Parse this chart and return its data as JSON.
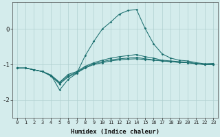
{
  "xlabel": "Humidex (Indice chaleur)",
  "ylabel": "",
  "background_color": "#d4ecec",
  "line_color": "#1a6e6e",
  "grid_color": "#b0d0d0",
  "xlim": [
    -0.5,
    23.5
  ],
  "ylim": [
    -2.5,
    0.75
  ],
  "yticks": [
    0,
    -1,
    -2
  ],
  "xticks": [
    0,
    1,
    2,
    3,
    4,
    5,
    6,
    7,
    8,
    9,
    10,
    11,
    12,
    13,
    14,
    15,
    16,
    17,
    18,
    19,
    20,
    21,
    22,
    23
  ],
  "series": [
    {
      "x": [
        0,
        1,
        2,
        3,
        4,
        5,
        6,
        7,
        8,
        9,
        10,
        11,
        12,
        13,
        14,
        15,
        16,
        17,
        18,
        19,
        20,
        21,
        22,
        23
      ],
      "y": [
        -1.1,
        -1.1,
        -1.15,
        -1.2,
        -1.3,
        -1.72,
        -1.42,
        -1.25,
        -0.75,
        -0.35,
        0.0,
        0.2,
        0.42,
        0.52,
        0.55,
        0.02,
        -0.42,
        -0.7,
        -0.82,
        -0.88,
        -0.9,
        -0.95,
        -0.98,
        -0.97
      ]
    },
    {
      "x": [
        0,
        1,
        2,
        3,
        4,
        5,
        6,
        7,
        8,
        9,
        10,
        11,
        12,
        13,
        14,
        15,
        16,
        17,
        18,
        19,
        20,
        21,
        22,
        23
      ],
      "y": [
        -1.1,
        -1.1,
        -1.15,
        -1.2,
        -1.3,
        -1.5,
        -1.28,
        -1.2,
        -1.05,
        -0.95,
        -0.88,
        -0.82,
        -0.78,
        -0.75,
        -0.72,
        -0.78,
        -0.82,
        -0.88,
        -0.9,
        -0.92,
        -0.94,
        -0.97,
        -1.0,
        -1.0
      ]
    },
    {
      "x": [
        0,
        1,
        2,
        3,
        4,
        5,
        6,
        7,
        8,
        9,
        10,
        11,
        12,
        13,
        14,
        15,
        16,
        17,
        18,
        19,
        20,
        21,
        22,
        23
      ],
      "y": [
        -1.1,
        -1.1,
        -1.15,
        -1.2,
        -1.32,
        -1.52,
        -1.32,
        -1.22,
        -1.08,
        -0.98,
        -0.92,
        -0.87,
        -0.84,
        -0.82,
        -0.8,
        -0.84,
        -0.87,
        -0.9,
        -0.92,
        -0.94,
        -0.95,
        -0.98,
        -1.0,
        -1.0
      ]
    },
    {
      "x": [
        0,
        1,
        2,
        3,
        4,
        5,
        6,
        7,
        8,
        9,
        10,
        11,
        12,
        13,
        14,
        15,
        16,
        17,
        18,
        19,
        20,
        21,
        22,
        23
      ],
      "y": [
        -1.1,
        -1.1,
        -1.15,
        -1.2,
        -1.33,
        -1.55,
        -1.35,
        -1.24,
        -1.1,
        -1.0,
        -0.95,
        -0.9,
        -0.87,
        -0.85,
        -0.84,
        -0.86,
        -0.88,
        -0.9,
        -0.92,
        -0.94,
        -0.95,
        -0.98,
        -1.0,
        -1.0
      ]
    }
  ]
}
